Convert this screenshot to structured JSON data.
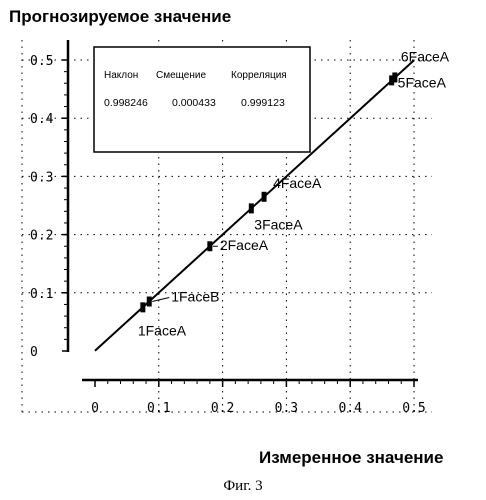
{
  "figure": {
    "caption": "Фиг. 3"
  },
  "chart_data": {
    "type": "scatter",
    "ylabel": "Прогнозируемое значение",
    "xlabel": "Измеренное значение",
    "xlim": [
      0,
      0.5
    ],
    "ylim": [
      0,
      0.5
    ],
    "x_ticks": [
      "0",
      "0.1",
      "0.2",
      "0.3",
      "0.4",
      "0.5"
    ],
    "y_ticks": [
      "0",
      "0.1",
      "0.2",
      "0.3",
      "0.4",
      "0.5"
    ],
    "grid": true,
    "stats": {
      "headers": [
        "Наклон",
        "Смещение",
        "Корреляция"
      ],
      "values": [
        "0.998246",
        "0.000433",
        "0.999123"
      ]
    },
    "fit_line": {
      "slope": 0.998246,
      "intercept": 0.000433,
      "x_range": [
        0,
        0.5
      ]
    },
    "points": [
      {
        "label": "1FaceA",
        "x": 0.075,
        "y": 0.075
      },
      {
        "label": "1FaceB",
        "x": 0.085,
        "y": 0.085
      },
      {
        "label": "2FaceA",
        "x": 0.18,
        "y": 0.18
      },
      {
        "label": "3FaceA",
        "x": 0.245,
        "y": 0.245
      },
      {
        "label": "4FaceA",
        "x": 0.265,
        "y": 0.265
      },
      {
        "label": "5FaceA",
        "x": 0.465,
        "y": 0.465
      },
      {
        "label": "6FaceA",
        "x": 0.47,
        "y": 0.47
      }
    ]
  }
}
